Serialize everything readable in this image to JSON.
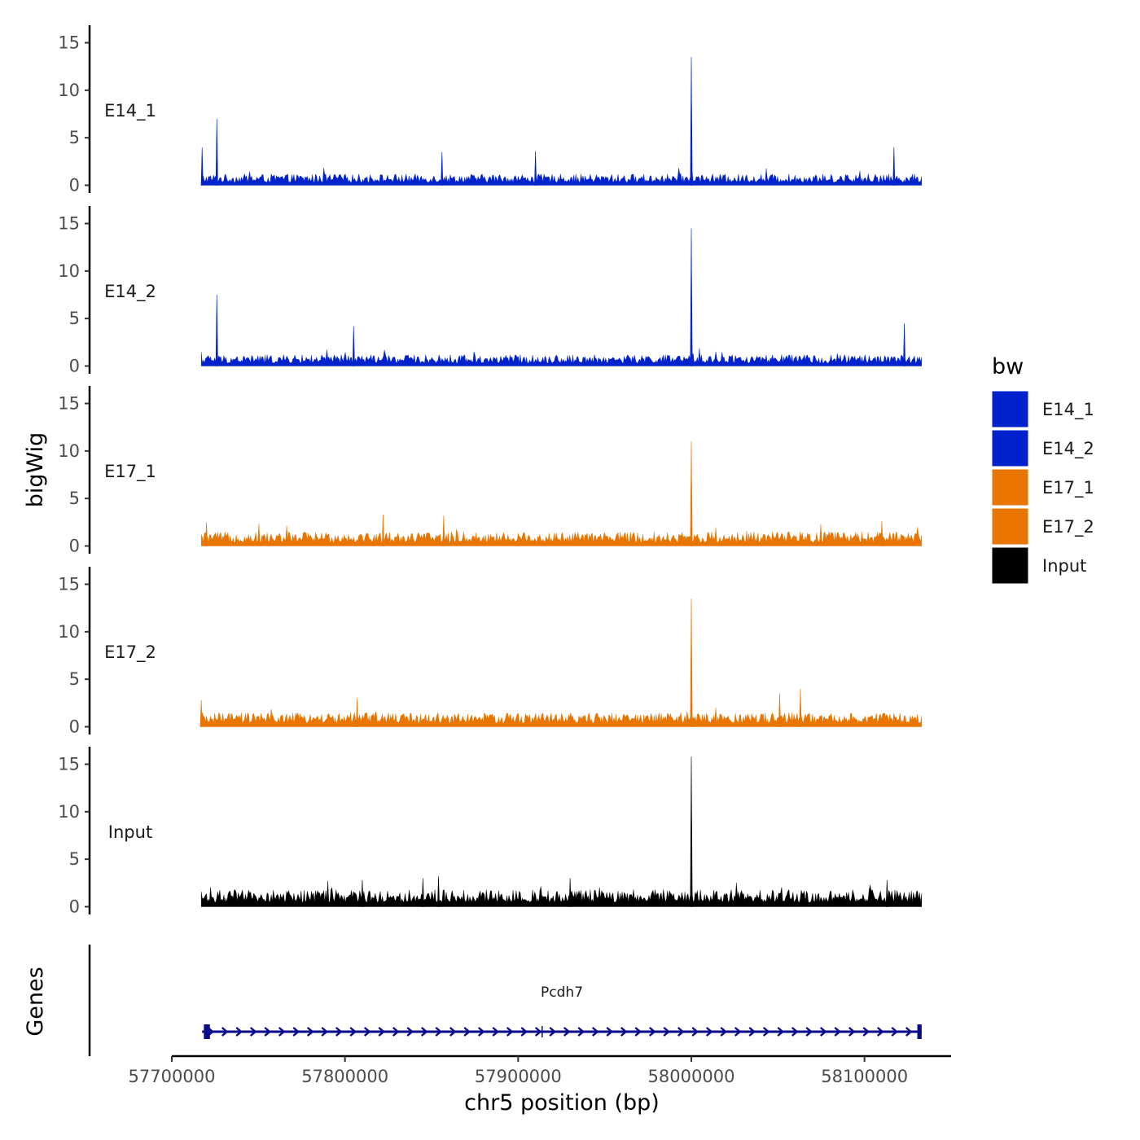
{
  "chart_data": {
    "type": "area",
    "title": "",
    "ylabel": "bigWig",
    "xlabel": "chr5 position (bp)",
    "x_range": [
      57700000,
      58150000
    ],
    "data_range": [
      57717000,
      58133000
    ],
    "x_ticks": [
      57700000,
      57800000,
      57900000,
      58000000,
      58100000
    ],
    "x_tick_labels": [
      "57700000",
      "57800000",
      "57900000",
      "58000000",
      "58100000"
    ],
    "y_range": [
      0,
      16
    ],
    "y_ticks": [
      0,
      5,
      10,
      15
    ],
    "y_tick_labels": [
      "0",
      "5",
      "10",
      "15"
    ],
    "series": [
      {
        "name": "E14_1",
        "color": "#0022CC",
        "baseline": 1.2,
        "peaks": [
          {
            "x": 57717500,
            "y": 4.0
          },
          {
            "x": 57726000,
            "y": 7.0
          },
          {
            "x": 57856000,
            "y": 3.5
          },
          {
            "x": 57910000,
            "y": 3.6
          },
          {
            "x": 58000000,
            "y": 13.5
          },
          {
            "x": 58117000,
            "y": 4.0
          }
        ]
      },
      {
        "name": "E14_2",
        "color": "#0022CC",
        "baseline": 1.2,
        "peaks": [
          {
            "x": 57726000,
            "y": 7.5
          },
          {
            "x": 57805000,
            "y": 4.2
          },
          {
            "x": 58000000,
            "y": 14.5
          },
          {
            "x": 58123000,
            "y": 4.5
          }
        ]
      },
      {
        "name": "E17_1",
        "color": "#E87500",
        "baseline": 1.5,
        "peaks": [
          {
            "x": 57720000,
            "y": 2.5
          },
          {
            "x": 57822000,
            "y": 3.3
          },
          {
            "x": 57857000,
            "y": 3.2
          },
          {
            "x": 58000000,
            "y": 11.0
          },
          {
            "x": 58110000,
            "y": 2.6
          }
        ]
      },
      {
        "name": "E17_2",
        "color": "#E87500",
        "baseline": 1.5,
        "peaks": [
          {
            "x": 57717000,
            "y": 2.8
          },
          {
            "x": 57807000,
            "y": 3.0
          },
          {
            "x": 58000000,
            "y": 13.5
          },
          {
            "x": 58051000,
            "y": 3.5
          },
          {
            "x": 58063000,
            "y": 4.0
          }
        ]
      },
      {
        "name": "Input",
        "color": "#000000",
        "baseline": 1.8,
        "peaks": [
          {
            "x": 57810000,
            "y": 2.8
          },
          {
            "x": 57845000,
            "y": 3.0
          },
          {
            "x": 57854000,
            "y": 3.2
          },
          {
            "x": 57930000,
            "y": 3.0
          },
          {
            "x": 58000000,
            "y": 15.8
          },
          {
            "x": 58113000,
            "y": 2.8
          }
        ]
      }
    ],
    "genes_track": {
      "label": "Genes",
      "genes": [
        {
          "name": "Pcdh7",
          "start": 57717500,
          "end": 58133000,
          "strand": "+",
          "color": "#0A0A8C",
          "exons": [
            {
              "start": 57718500,
              "end": 57722000
            },
            {
              "start": 57913500,
              "end": 57914200
            },
            {
              "start": 58130500,
              "end": 58133000
            }
          ]
        }
      ]
    },
    "legend": {
      "title": "bw",
      "position": "right",
      "entries": [
        {
          "label": "E14_1",
          "color": "#0022CC"
        },
        {
          "label": "E14_2",
          "color": "#0022CC"
        },
        {
          "label": "E17_1",
          "color": "#E87500"
        },
        {
          "label": "E17_2",
          "color": "#E87500"
        },
        {
          "label": "Input",
          "color": "#000000"
        }
      ]
    }
  }
}
